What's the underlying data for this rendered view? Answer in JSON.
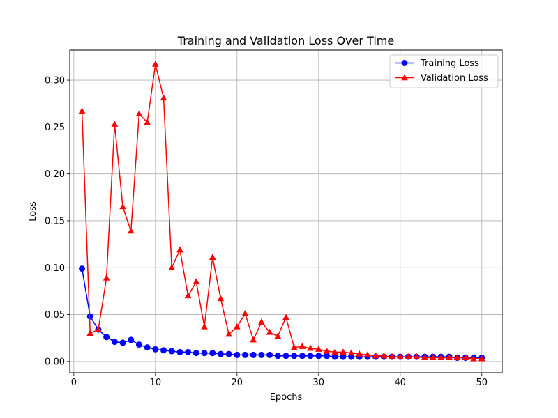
{
  "chart_data": {
    "type": "line",
    "title": "Training and Validation Loss Over Time",
    "xlabel": "Epochs",
    "ylabel": "Loss",
    "xlim": [
      -0.5,
      52.5
    ],
    "ylim": [
      -0.012,
      0.332
    ],
    "xticks": [
      0,
      10,
      20,
      30,
      40,
      50
    ],
    "xtick_labels": [
      "0",
      "10",
      "20",
      "30",
      "40",
      "50"
    ],
    "yticks": [
      0.0,
      0.05,
      0.1,
      0.15,
      0.2,
      0.25,
      0.3
    ],
    "ytick_labels": [
      "0.00",
      "0.05",
      "0.10",
      "0.15",
      "0.20",
      "0.25",
      "0.30"
    ],
    "grid": true,
    "legend_position": "top-right",
    "x": [
      1,
      2,
      3,
      4,
      5,
      6,
      7,
      8,
      9,
      10,
      11,
      12,
      13,
      14,
      15,
      16,
      17,
      18,
      19,
      20,
      21,
      22,
      23,
      24,
      25,
      26,
      27,
      28,
      29,
      30,
      31,
      32,
      33,
      34,
      35,
      36,
      37,
      38,
      39,
      40,
      41,
      42,
      43,
      44,
      45,
      46,
      47,
      48,
      49,
      50
    ],
    "series": [
      {
        "name": "Training Loss",
        "color": "#0000ff",
        "marker": "circle",
        "values": [
          0.099,
          0.048,
          0.034,
          0.026,
          0.021,
          0.02,
          0.023,
          0.018,
          0.015,
          0.013,
          0.012,
          0.011,
          0.01,
          0.01,
          0.009,
          0.009,
          0.009,
          0.008,
          0.008,
          0.007,
          0.007,
          0.007,
          0.007,
          0.007,
          0.006,
          0.006,
          0.006,
          0.006,
          0.006,
          0.006,
          0.006,
          0.005,
          0.005,
          0.005,
          0.005,
          0.005,
          0.005,
          0.005,
          0.005,
          0.005,
          0.005,
          0.005,
          0.005,
          0.005,
          0.005,
          0.005,
          0.004,
          0.004,
          0.004,
          0.004
        ]
      },
      {
        "name": "Validation Loss",
        "color": "#ff0000",
        "marker": "triangle",
        "values": [
          0.267,
          0.03,
          0.034,
          0.089,
          0.253,
          0.165,
          0.139,
          0.264,
          0.255,
          0.317,
          0.281,
          0.1,
          0.119,
          0.07,
          0.085,
          0.037,
          0.111,
          0.067,
          0.029,
          0.037,
          0.051,
          0.023,
          0.042,
          0.031,
          0.027,
          0.047,
          0.015,
          0.016,
          0.014,
          0.013,
          0.011,
          0.01,
          0.01,
          0.009,
          0.008,
          0.007,
          0.006,
          0.006,
          0.005,
          0.005,
          0.005,
          0.005,
          0.004,
          0.004,
          0.004,
          0.004,
          0.004,
          0.004,
          0.003,
          0.003
        ]
      }
    ]
  }
}
